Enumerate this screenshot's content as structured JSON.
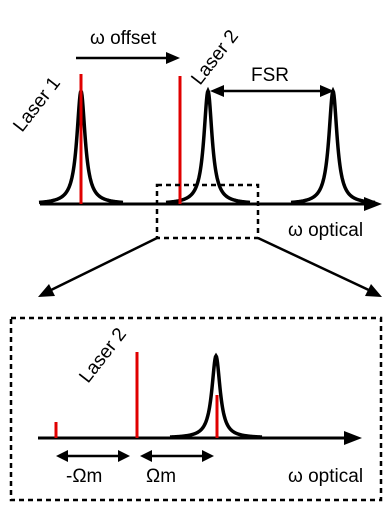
{
  "labels": {
    "laser1": "Laser 1",
    "laser2_top": "Laser 2",
    "offset": "ω offset",
    "fsr": "FSR",
    "axis_top": "ω optical",
    "laser2_zoom": "Laser 2",
    "minus_omega_m": "-Ωm",
    "omega_m": "Ωm",
    "axis_zoom": "ω optical"
  },
  "colors": {
    "resonance": "#000000",
    "laser": "#e00000",
    "dashed": "#000000"
  }
}
